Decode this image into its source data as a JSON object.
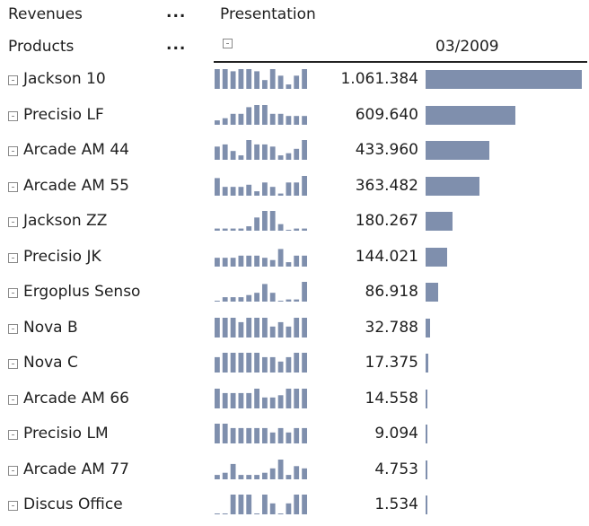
{
  "header": {
    "revenues_label": "Revenues",
    "revenues_more": "...",
    "products_label": "Products",
    "products_more": "...",
    "presentation_label": "Presentation",
    "period_label": "03/2009"
  },
  "colors": {
    "bar": "#7f8fad",
    "spark": "#7f8fad",
    "rule": "#222222"
  },
  "icons": {
    "expand": "collapse-box-icon"
  },
  "rows": [
    {
      "name": "Jackson 10",
      "value": "1.061.384",
      "amount": 1061384,
      "spark": [
        9,
        9,
        8,
        9,
        9,
        8,
        4,
        9,
        6,
        2,
        6,
        9
      ]
    },
    {
      "name": "Precisio LF",
      "value": "609.640",
      "amount": 609640,
      "spark": [
        2,
        3,
        5,
        5,
        8,
        9,
        9,
        5,
        5,
        4,
        4,
        4
      ]
    },
    {
      "name": "Arcade AM 44",
      "value": "433.960",
      "amount": 433960,
      "spark": [
        6,
        7,
        4,
        2,
        9,
        7,
        7,
        6,
        2,
        3,
        5,
        9
      ]
    },
    {
      "name": "Arcade AM 55",
      "value": "363.482",
      "amount": 363482,
      "spark": [
        8,
        4,
        4,
        4,
        5,
        2,
        6,
        4,
        1,
        6,
        6,
        9
      ]
    },
    {
      "name": "Jackson ZZ",
      "value": "180.267",
      "amount": 180267,
      "spark": [
        1,
        1,
        1,
        1,
        2,
        6,
        9,
        9,
        3,
        0,
        1,
        1
      ]
    },
    {
      "name": "Precisio JK",
      "value": "144.021",
      "amount": 144021,
      "spark": [
        4,
        4,
        4,
        5,
        5,
        5,
        4,
        3,
        8,
        2,
        5,
        5
      ]
    },
    {
      "name": "Ergoplus Senso",
      "value": "86.918",
      "amount": 86918,
      "spark": [
        0,
        2,
        2,
        2,
        3,
        4,
        8,
        4,
        0,
        1,
        1,
        9
      ]
    },
    {
      "name": "Nova B",
      "value": "32.788",
      "amount": 32788,
      "spark": [
        9,
        9,
        9,
        7,
        9,
        9,
        9,
        5,
        7,
        5,
        9,
        9
      ]
    },
    {
      "name": "Nova C",
      "value": "17.375",
      "amount": 17375,
      "spark": [
        7,
        9,
        9,
        9,
        9,
        9,
        7,
        7,
        5,
        7,
        9,
        9
      ]
    },
    {
      "name": "Arcade AM 66",
      "value": "14.558",
      "amount": 14558,
      "spark": [
        9,
        7,
        7,
        7,
        7,
        9,
        5,
        5,
        6,
        9,
        9,
        9
      ]
    },
    {
      "name": "Precisio LM",
      "value": "9.094",
      "amount": 9094,
      "spark": [
        9,
        9,
        7,
        7,
        7,
        7,
        7,
        5,
        7,
        5,
        7,
        7
      ]
    },
    {
      "name": "Arcade AM 77",
      "value": "4.753",
      "amount": 4753,
      "spark": [
        2,
        3,
        7,
        2,
        2,
        2,
        3,
        5,
        9,
        2,
        6,
        5
      ]
    },
    {
      "name": "Discus Office",
      "value": "1.534",
      "amount": 1534,
      "spark": [
        0,
        0,
        9,
        9,
        9,
        0,
        9,
        5,
        0,
        5,
        9,
        9
      ]
    }
  ]
}
